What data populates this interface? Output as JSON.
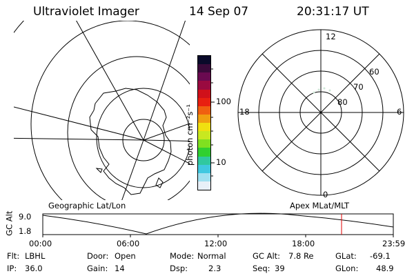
{
  "header": {
    "title": "Ultraviolet Imager",
    "date": "14 Sep 07",
    "time": "20:31:17 UT"
  },
  "colorbar": {
    "unit_label": "photon cm⁻²s⁻¹",
    "tick_100": "100",
    "tick_10": "10",
    "colors": [
      "#0a0a2a",
      "#3a0a3a",
      "#6a0a50",
      "#9a0a40",
      "#d0101a",
      "#e82010",
      "#f06010",
      "#f0a010",
      "#f0e010",
      "#c8e820",
      "#80e020",
      "#30d030",
      "#30c8a0",
      "#40c8e0",
      "#a0e0f0",
      "#e8f0f8"
    ]
  },
  "geo_map": {
    "label": "Geographic Lat/Lon"
  },
  "polar_map": {
    "label": "Apex MLat/MLT",
    "mlt_labels": {
      "top": "12",
      "left": "18",
      "right": "6",
      "bottom": "0"
    },
    "lat_labels": [
      "60",
      "70",
      "80"
    ]
  },
  "altitude_plot": {
    "ylabel": "GC Alt",
    "ymax": "9.0",
    "ymin": "1.8",
    "x_ticks": [
      "00:00",
      "06:00",
      "12:00",
      "18:00",
      "23:59"
    ],
    "marker_color": "#e00000"
  },
  "status": {
    "flt_label": "Flt:",
    "flt_value": "LBHL",
    "ip_label": "IP:",
    "ip_value": "36.0",
    "door_label": "Door:",
    "door_value": "Open",
    "gain_label": "Gain:",
    "gain_value": "14",
    "mode_label": "Mode:",
    "mode_value": "Normal",
    "dsp_label": "Dsp:",
    "dsp_value": "2.3",
    "gcalt_label": "GC Alt:",
    "gcalt_value": "7.8 Re",
    "seq_label": "Seq:",
    "seq_value": "39",
    "glat_label": "GLat:",
    "glat_value": "-69.1",
    "glon_label": "GLon:",
    "glon_value": "48.9"
  }
}
